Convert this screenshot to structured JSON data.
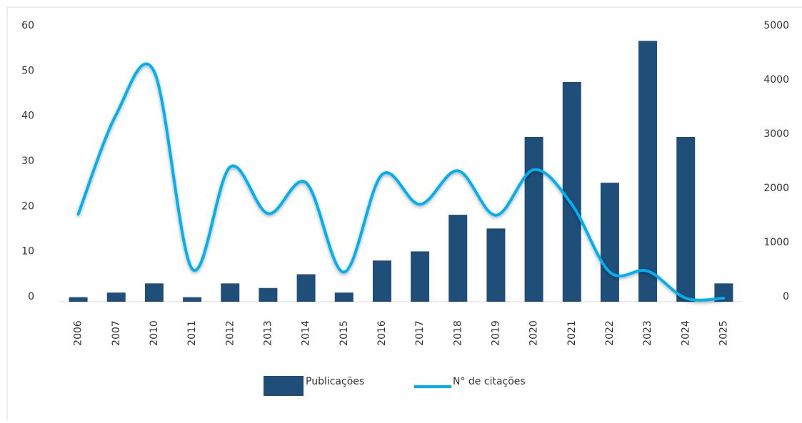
{
  "chart_data": {
    "type": "bar_line",
    "categories": [
      "2006",
      "2007",
      "2010",
      "2011",
      "2012",
      "2013",
      "2014",
      "2015",
      "2016",
      "2017",
      "2018",
      "2019",
      "2020",
      "2021",
      "2022",
      "2023",
      "2024",
      "2025"
    ],
    "series": [
      {
        "name": "Publicações",
        "type": "bar",
        "color": "#1f4e79",
        "values": [
          1,
          2,
          4,
          1,
          4,
          3,
          6,
          2,
          9,
          11,
          19,
          16,
          36,
          48,
          26,
          57,
          36,
          4
        ]
      },
      {
        "name": "N° de citações",
        "type": "line",
        "axis": "y2",
        "color": "#00b0f0",
        "values": [
          1550,
          3390,
          4180,
          540,
          2420,
          1560,
          2130,
          480,
          2280,
          1730,
          2350,
          1530,
          2370,
          1730,
          480,
          500,
          0,
          0
        ]
      }
    ],
    "ylim": [
      0,
      60
    ],
    "yticks": [
      0,
      10,
      20,
      30,
      40,
      50,
      60
    ],
    "y2lim": [
      0,
      5000
    ],
    "y2ticks": [
      0,
      1000,
      2000,
      3000,
      4000,
      5000
    ],
    "legend": "bottom"
  }
}
